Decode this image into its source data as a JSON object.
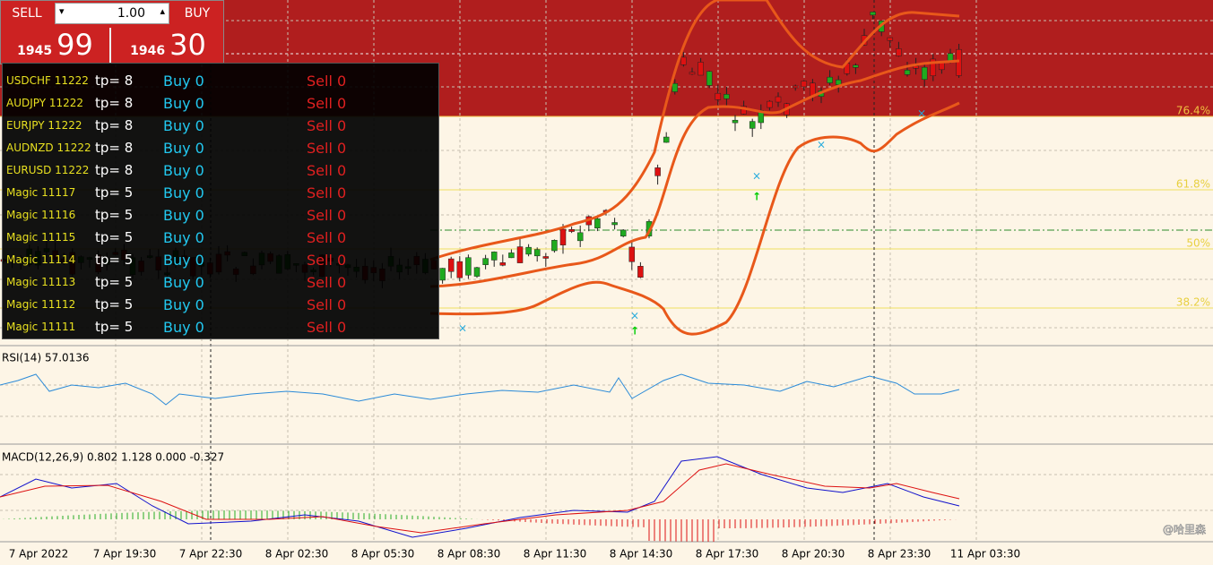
{
  "widget": {
    "sell": "SELL",
    "lot": "1.00",
    "buy": "BUY",
    "bid_main": "1945",
    "bid_pips": "99",
    "ask_main": "1946",
    "ask_pips": "30"
  },
  "panel": {
    "rows": [
      [
        "USDCHF 11222",
        "tp= 8",
        "Buy 0",
        "Sell 0"
      ],
      [
        "AUDJPY 11222",
        "tp= 8",
        "Buy 0",
        "Sell 0"
      ],
      [
        "EURJPY 11222",
        "tp= 8",
        "Buy 0",
        "Sell 0"
      ],
      [
        "AUDNZD 11222",
        "tp= 8",
        "Buy 0",
        "Sell 0"
      ],
      [
        "EURUSD 11222",
        "tp= 8",
        "Buy 0",
        "Sell 0"
      ],
      [
        "Magic 11117",
        "tp= 5",
        "Buy 0",
        "Sell 0"
      ],
      [
        "Magic 11116",
        "tp= 5",
        "Buy 0",
        "Sell 0"
      ],
      [
        "Magic 11115",
        "tp= 5",
        "Buy 0",
        "Sell 0"
      ],
      [
        "Magic 11114",
        "tp= 5",
        "Buy 0",
        "Sell 0"
      ],
      [
        "Magic 11113",
        "tp= 5",
        "Buy 0",
        "Sell 0"
      ],
      [
        "Magic 11112",
        "tp= 5",
        "Buy 0",
        "Sell 0"
      ],
      [
        "Magic 11111",
        "tp= 5",
        "Buy 0",
        "Sell 0"
      ]
    ]
  },
  "fib_levels": [
    "76.4%",
    "61.8%",
    "50%",
    "38.2%"
  ],
  "indicators": {
    "rsi": "RSI(14) 57.0136",
    "macd": "MACD(12,26,9) 0.802 1.128 0.000 -0.327"
  },
  "time_axis": [
    "7 Apr 2022",
    "7 Apr 19:30",
    "7 Apr 22:30",
    "8 Apr 02:30",
    "8 Apr 05:30",
    "8 Apr 08:30",
    "8 Apr 11:30",
    "8 Apr 14:30",
    "8 Apr 17:30",
    "8 Apr 20:30",
    "8 Apr 23:30",
    "11 Apr 03:30"
  ],
  "watermark": "@哈里森"
}
